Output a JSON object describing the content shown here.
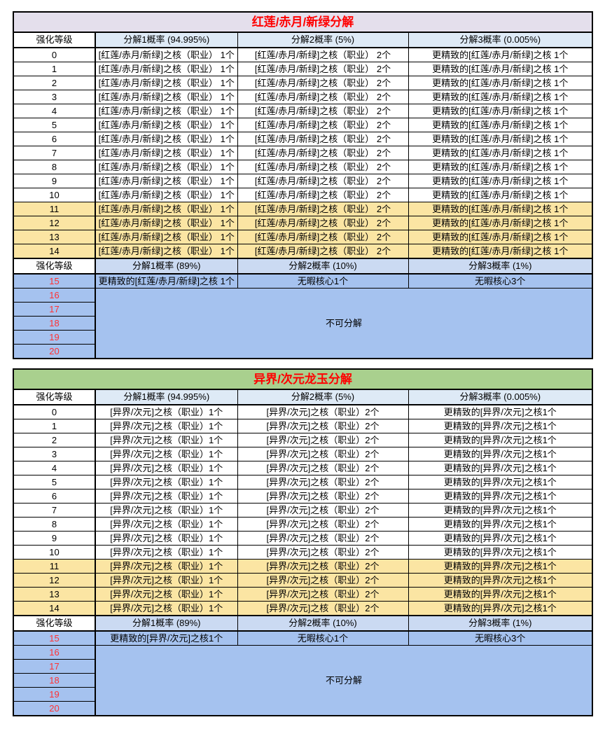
{
  "colors": {
    "page_bg": "#FFFFFF",
    "border": "#000000",
    "title_red": "#FF0000",
    "num_red": "#FF3233",
    "header_bg": "#DEEAF6",
    "mid_header_bg": "#CBDAF2",
    "blue_bg": "#A5C2EF",
    "yellow_bg": "#FBE5A3"
  },
  "tables": [
    {
      "title": "红莲/赤月/新绿分解",
      "title_bg": "#E4DFEC",
      "header_top": {
        "level_label": "强化等级",
        "cols": [
          "分解1概率 (94.995%)",
          "分解2概率 (5%)",
          "分解3概率 (0.005%)"
        ]
      },
      "rows": [
        {
          "level": "0",
          "highlight": false,
          "cells": [
            "[红莲/赤月/新绿]之核（职业） 1个",
            "[红莲/赤月/新绿]之核（职业） 2个",
            "更精致的[红莲/赤月/新绿]之核 1个"
          ]
        },
        {
          "level": "1",
          "highlight": false,
          "cells": [
            "[红莲/赤月/新绿]之核（职业） 1个",
            "[红莲/赤月/新绿]之核（职业） 2个",
            "更精致的[红莲/赤月/新绿]之核 1个"
          ]
        },
        {
          "level": "2",
          "highlight": false,
          "cells": [
            "[红莲/赤月/新绿]之核（职业） 1个",
            "[红莲/赤月/新绿]之核（职业） 2个",
            "更精致的[红莲/赤月/新绿]之核 1个"
          ]
        },
        {
          "level": "3",
          "highlight": false,
          "cells": [
            "[红莲/赤月/新绿]之核（职业） 1个",
            "[红莲/赤月/新绿]之核（职业） 2个",
            "更精致的[红莲/赤月/新绿]之核 1个"
          ]
        },
        {
          "level": "4",
          "highlight": false,
          "cells": [
            "[红莲/赤月/新绿]之核（职业） 1个",
            "[红莲/赤月/新绿]之核（职业） 2个",
            "更精致的[红莲/赤月/新绿]之核 1个"
          ]
        },
        {
          "level": "5",
          "highlight": false,
          "cells": [
            "[红莲/赤月/新绿]之核（职业） 1个",
            "[红莲/赤月/新绿]之核（职业） 2个",
            "更精致的[红莲/赤月/新绿]之核 1个"
          ]
        },
        {
          "level": "6",
          "highlight": false,
          "cells": [
            "[红莲/赤月/新绿]之核（职业） 1个",
            "[红莲/赤月/新绿]之核（职业） 2个",
            "更精致的[红莲/赤月/新绿]之核 1个"
          ]
        },
        {
          "level": "7",
          "highlight": false,
          "cells": [
            "[红莲/赤月/新绿]之核（职业） 1个",
            "[红莲/赤月/新绿]之核（职业） 2个",
            "更精致的[红莲/赤月/新绿]之核 1个"
          ]
        },
        {
          "level": "8",
          "highlight": false,
          "cells": [
            "[红莲/赤月/新绿]之核（职业） 1个",
            "[红莲/赤月/新绿]之核（职业） 2个",
            "更精致的[红莲/赤月/新绿]之核 1个"
          ]
        },
        {
          "level": "9",
          "highlight": false,
          "cells": [
            "[红莲/赤月/新绿]之核（职业） 1个",
            "[红莲/赤月/新绿]之核（职业） 2个",
            "更精致的[红莲/赤月/新绿]之核 1个"
          ]
        },
        {
          "level": "10",
          "highlight": false,
          "cells": [
            "[红莲/赤月/新绿]之核（职业） 1个",
            "[红莲/赤月/新绿]之核（职业） 2个",
            "更精致的[红莲/赤月/新绿]之核 1个"
          ]
        },
        {
          "level": "11",
          "highlight": true,
          "cells": [
            "[红莲/赤月/新绿]之核（职业） 1个",
            "[红莲/赤月/新绿]之核（职业） 2个",
            "更精致的[红莲/赤月/新绿]之核 1个"
          ]
        },
        {
          "level": "12",
          "highlight": true,
          "cells": [
            "[红莲/赤月/新绿]之核（职业） 1个",
            "[红莲/赤月/新绿]之核（职业） 2个",
            "更精致的[红莲/赤月/新绿]之核 1个"
          ]
        },
        {
          "level": "13",
          "highlight": true,
          "cells": [
            "[红莲/赤月/新绿]之核（职业） 1个",
            "[红莲/赤月/新绿]之核（职业） 2个",
            "更精致的[红莲/赤月/新绿]之核 1个"
          ]
        },
        {
          "level": "14",
          "highlight": true,
          "cells": [
            "[红莲/赤月/新绿]之核（职业） 1个",
            "[红莲/赤月/新绿]之核（职业） 2个",
            "更精致的[红莲/赤月/新绿]之核 1个"
          ]
        }
      ],
      "header_mid": {
        "level_label": "强化等级",
        "cols": [
          "分解1概率 (89%)",
          "分解2概率 (10%)",
          "分解3概率 (1%)"
        ]
      },
      "row15": {
        "level": "15",
        "cells": [
          "更精致的[红莲/赤月/新绿]之核 1个",
          "无暇核心1个",
          "无暇核心3个"
        ]
      },
      "locked": {
        "levels": [
          "16",
          "17",
          "18",
          "19",
          "20"
        ],
        "label": "不可分解"
      }
    },
    {
      "title": "异界/次元龙玉分解",
      "title_bg": "#A9D08E",
      "header_top": {
        "level_label": "强化等级",
        "cols": [
          "分解1概率 (94.995%)",
          "分解2概率 (5%)",
          "分解3概率 (0.005%)"
        ]
      },
      "rows": [
        {
          "level": "0",
          "highlight": false,
          "cells": [
            "[异界/次元]之核（职业）1个",
            "[异界/次元]之核（职业）2个",
            "更精致的[异界/次元]之核1个"
          ]
        },
        {
          "level": "1",
          "highlight": false,
          "cells": [
            "[异界/次元]之核（职业）1个",
            "[异界/次元]之核（职业）2个",
            "更精致的[异界/次元]之核1个"
          ]
        },
        {
          "level": "2",
          "highlight": false,
          "cells": [
            "[异界/次元]之核（职业）1个",
            "[异界/次元]之核（职业）2个",
            "更精致的[异界/次元]之核1个"
          ]
        },
        {
          "level": "3",
          "highlight": false,
          "cells": [
            "[异界/次元]之核（职业）1个",
            "[异界/次元]之核（职业）2个",
            "更精致的[异界/次元]之核1个"
          ]
        },
        {
          "level": "4",
          "highlight": false,
          "cells": [
            "[异界/次元]之核（职业）1个",
            "[异界/次元]之核（职业）2个",
            "更精致的[异界/次元]之核1个"
          ]
        },
        {
          "level": "5",
          "highlight": false,
          "cells": [
            "[异界/次元]之核（职业）1个",
            "[异界/次元]之核（职业）2个",
            "更精致的[异界/次元]之核1个"
          ]
        },
        {
          "level": "6",
          "highlight": false,
          "cells": [
            "[异界/次元]之核（职业）1个",
            "[异界/次元]之核（职业）2个",
            "更精致的[异界/次元]之核1个"
          ]
        },
        {
          "level": "7",
          "highlight": false,
          "cells": [
            "[异界/次元]之核（职业）1个",
            "[异界/次元]之核（职业）2个",
            "更精致的[异界/次元]之核1个"
          ]
        },
        {
          "level": "8",
          "highlight": false,
          "cells": [
            "[异界/次元]之核（职业）1个",
            "[异界/次元]之核（职业）2个",
            "更精致的[异界/次元]之核1个"
          ]
        },
        {
          "level": "9",
          "highlight": false,
          "cells": [
            "[异界/次元]之核（职业）1个",
            "[异界/次元]之核（职业）2个",
            "更精致的[异界/次元]之核1个"
          ]
        },
        {
          "level": "10",
          "highlight": false,
          "cells": [
            "[异界/次元]之核（职业）1个",
            "[异界/次元]之核（职业）2个",
            "更精致的[异界/次元]之核1个"
          ]
        },
        {
          "level": "11",
          "highlight": true,
          "cells": [
            "[异界/次元]之核（职业）1个",
            "[异界/次元]之核（职业）2个",
            "更精致的[异界/次元]之核1个"
          ]
        },
        {
          "level": "12",
          "highlight": true,
          "cells": [
            "[异界/次元]之核（职业）1个",
            "[异界/次元]之核（职业）2个",
            "更精致的[异界/次元]之核1个"
          ]
        },
        {
          "level": "13",
          "highlight": true,
          "cells": [
            "[异界/次元]之核（职业）1个",
            "[异界/次元]之核（职业）2个",
            "更精致的[异界/次元]之核1个"
          ]
        },
        {
          "level": "14",
          "highlight": true,
          "cells": [
            "[异界/次元]之核（职业）1个",
            "[异界/次元]之核（职业）2个",
            "更精致的[异界/次元]之核1个"
          ]
        }
      ],
      "header_mid": {
        "level_label": "强化等级",
        "cols": [
          "分解1概率 (89%)",
          "分解2概率 (10%)",
          "分解3概率 (1%)"
        ]
      },
      "row15": {
        "level": "15",
        "cells": [
          "更精致的[异界/次元]之核1个",
          "无暇核心1个",
          "无暇核心3个"
        ]
      },
      "locked": {
        "levels": [
          "16",
          "17",
          "18",
          "19",
          "20"
        ],
        "label": "不可分解"
      }
    }
  ]
}
